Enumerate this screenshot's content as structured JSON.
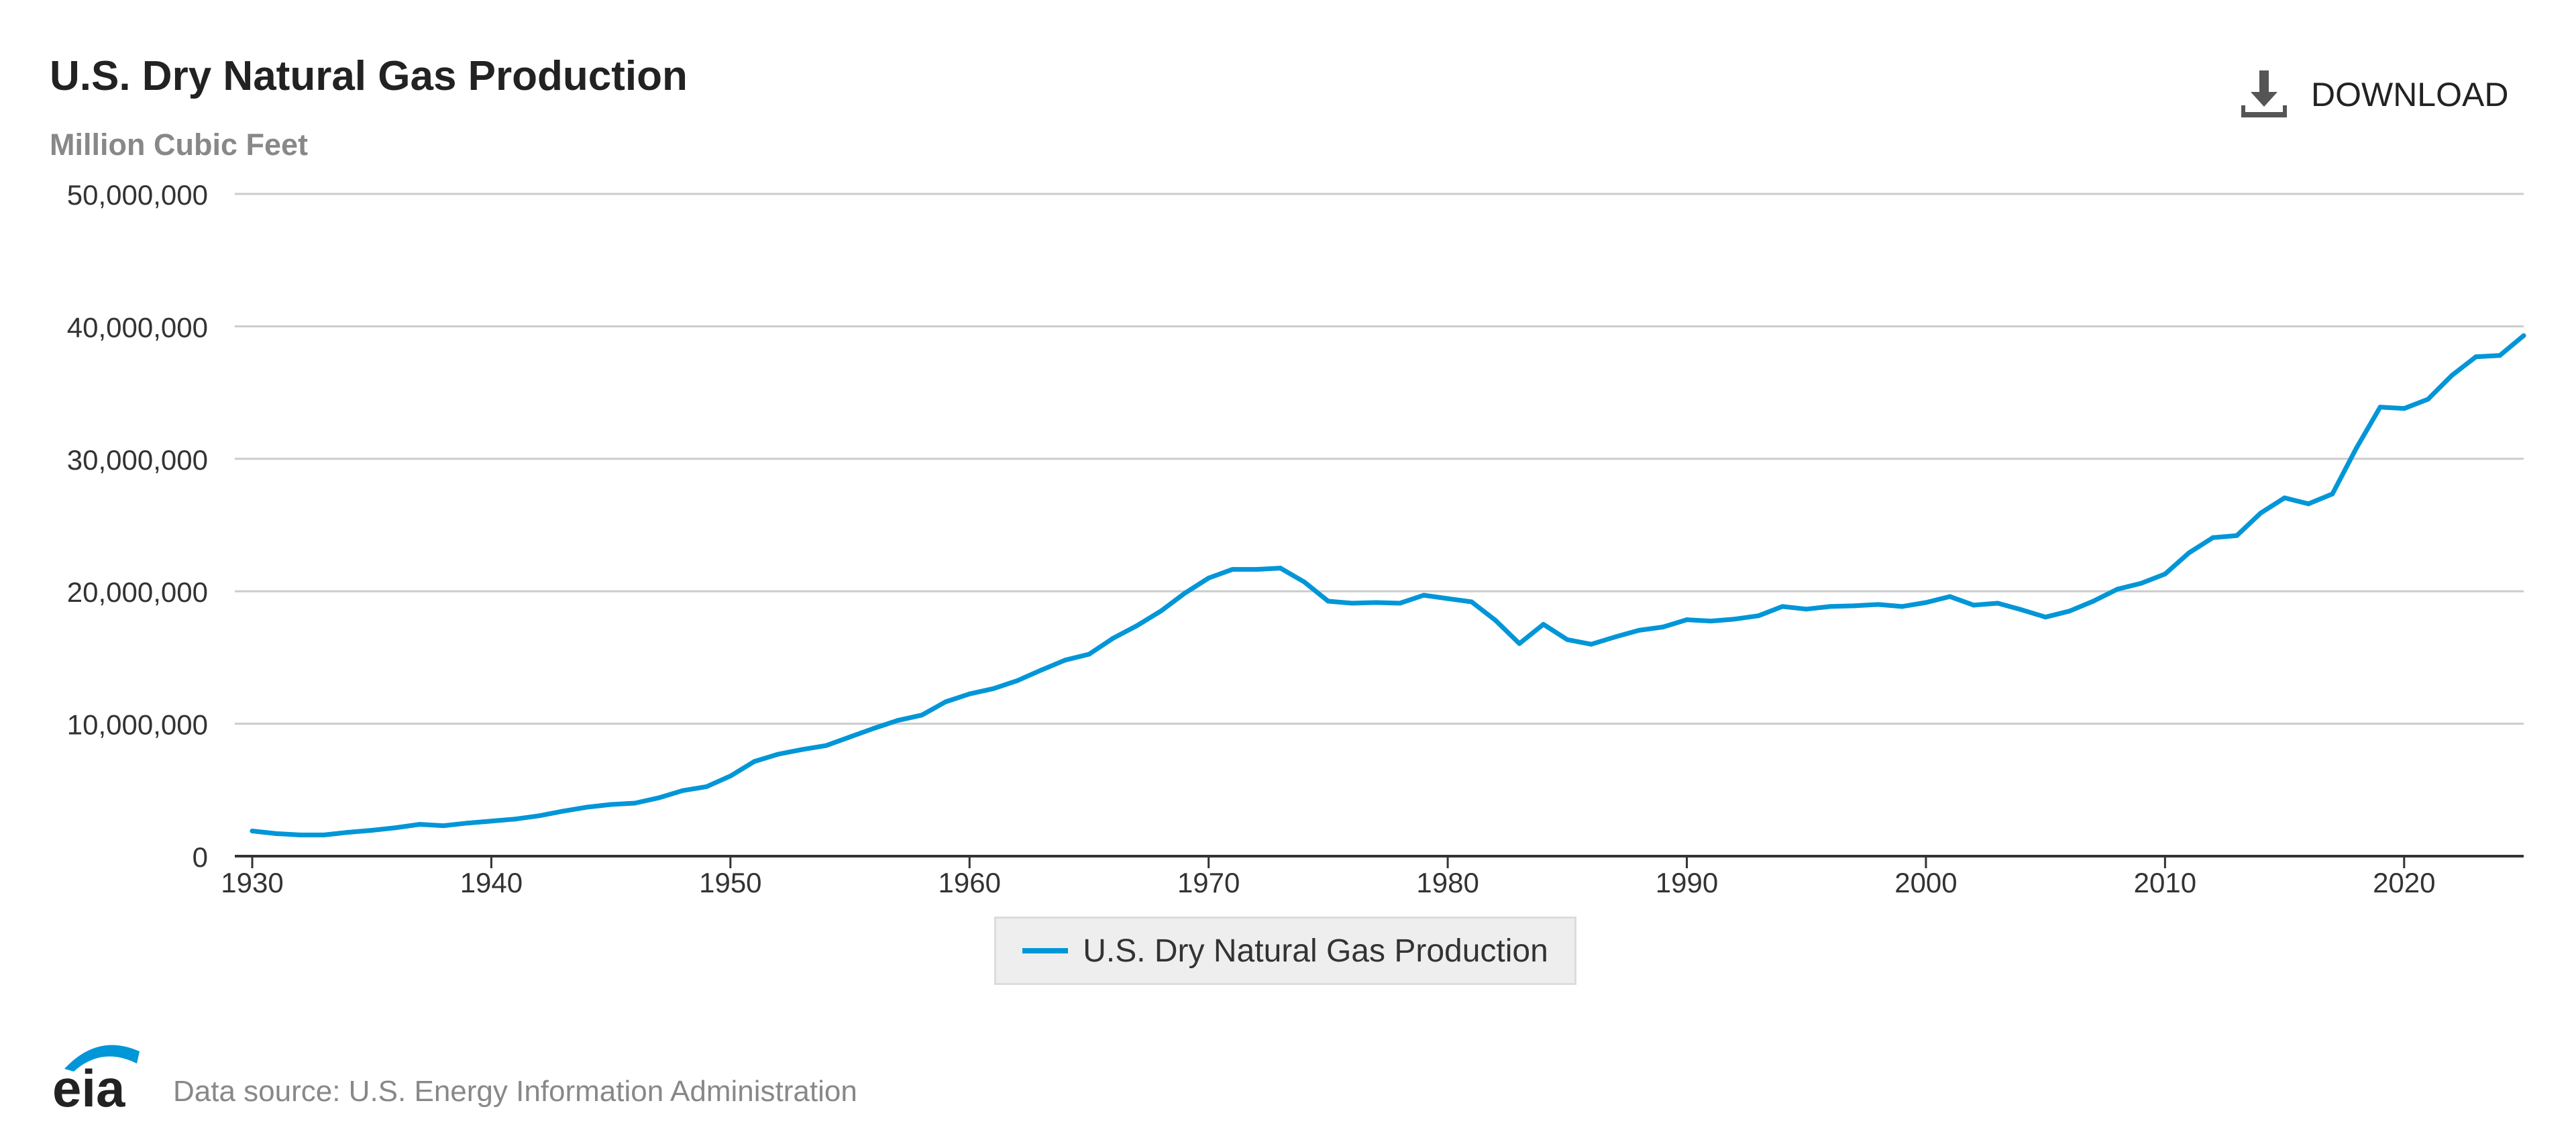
{
  "header": {
    "title": "U.S. Dry Natural Gas Production",
    "subtitle": "Million Cubic Feet",
    "download_label": "DOWNLOAD"
  },
  "footer": {
    "logo_text": "eia",
    "source_text": "Data source: U.S. Energy Information Administration"
  },
  "colors": {
    "series": "#0096d7",
    "grid": "#cccccc",
    "axis": "#333333"
  },
  "chart_data": {
    "type": "line",
    "title": "U.S. Dry Natural Gas Production",
    "ylabel": "Million Cubic Feet",
    "xlabel": "",
    "xlim": [
      1930,
      2025
    ],
    "ylim": [
      0,
      50000000
    ],
    "x_ticks": [
      1930,
      1940,
      1950,
      1960,
      1970,
      1980,
      1990,
      2000,
      2010,
      2020
    ],
    "x_tick_labels": [
      "1930",
      "1940",
      "1950",
      "1960",
      "1970",
      "1980",
      "1990",
      "2000",
      "2010",
      "2020"
    ],
    "y_ticks": [
      0,
      10000000,
      20000000,
      30000000,
      40000000,
      50000000
    ],
    "y_tick_labels": [
      "0",
      "10,000,000",
      "20,000,000",
      "30,000,000",
      "40,000,000",
      "50,000,000"
    ],
    "grid": true,
    "legend_position": "bottom-center",
    "series": [
      {
        "name": "U.S. Dry Natural Gas Production",
        "x": [
          1930,
          1931,
          1932,
          1933,
          1934,
          1935,
          1936,
          1937,
          1938,
          1939,
          1940,
          1941,
          1942,
          1943,
          1944,
          1945,
          1946,
          1947,
          1948,
          1949,
          1950,
          1951,
          1952,
          1953,
          1954,
          1955,
          1956,
          1957,
          1958,
          1959,
          1960,
          1961,
          1962,
          1963,
          1964,
          1965,
          1966,
          1967,
          1968,
          1969,
          1970,
          1971,
          1972,
          1973,
          1974,
          1975,
          1976,
          1977,
          1978,
          1979,
          1980,
          1981,
          1982,
          1983,
          1984,
          1985,
          1986,
          1987,
          1988,
          1989,
          1990,
          1991,
          1992,
          1993,
          1994,
          1995,
          1996,
          1997,
          1998,
          1999,
          2000,
          2001,
          2002,
          2003,
          2004,
          2005,
          2006,
          2007,
          2008,
          2009,
          2010,
          2011,
          2012,
          2013,
          2014,
          2015,
          2016,
          2017,
          2018,
          2019,
          2020,
          2021,
          2022,
          2023,
          2024,
          2025
        ],
        "values": [
          1900000,
          1700000,
          1600000,
          1600000,
          1800000,
          1950000,
          2150000,
          2400000,
          2300000,
          2500000,
          2650000,
          2800000,
          3050000,
          3400000,
          3700000,
          3900000,
          4000000,
          4400000,
          4950000,
          5250000,
          6050000,
          7150000,
          7700000,
          8050000,
          8350000,
          9000000,
          9650000,
          10250000,
          10650000,
          11650000,
          12250000,
          12650000,
          13250000,
          14050000,
          14800000,
          15250000,
          16450000,
          17400000,
          18500000,
          19850000,
          21000000,
          21650000,
          21650000,
          21750000,
          20700000,
          19250000,
          19100000,
          19150000,
          19100000,
          19700000,
          19450000,
          19200000,
          17800000,
          16050000,
          17500000,
          16350000,
          16000000,
          16550000,
          17050000,
          17300000,
          17850000,
          17750000,
          17900000,
          18150000,
          18850000,
          18650000,
          18850000,
          18900000,
          19000000,
          18850000,
          19150000,
          19600000,
          18950000,
          19100000,
          18600000,
          18050000,
          18500000,
          19250000,
          20150000,
          20600000,
          21300000,
          22900000,
          24050000,
          24200000,
          25900000,
          27050000,
          26600000,
          27350000,
          30800000,
          33900000,
          33800000,
          34500000,
          36300000,
          37700000,
          37800000,
          39300000
        ]
      }
    ]
  }
}
